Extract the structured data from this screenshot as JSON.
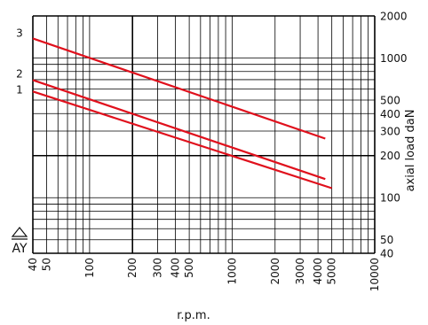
{
  "chart_data": {
    "type": "line",
    "x_scale": "log",
    "y_scale": "log",
    "xlim": [
      40,
      10000
    ],
    "ylim": [
      40,
      2000
    ],
    "grid": true,
    "xlabel": "r.p.m.",
    "ylabel": "axial load  daN",
    "x_ticks": [
      {
        "value": 40,
        "label": "40"
      },
      {
        "value": 50,
        "label": "50"
      },
      {
        "value": 100,
        "label": "100"
      },
      {
        "value": 200,
        "label": "200"
      },
      {
        "value": 300,
        "label": "300"
      },
      {
        "value": 400,
        "label": "400"
      },
      {
        "value": 500,
        "label": "500"
      },
      {
        "value": 1000,
        "label": "1000"
      },
      {
        "value": 2000,
        "label": "2000"
      },
      {
        "value": 3000,
        "label": "3000"
      },
      {
        "value": 4000,
        "label": "4000"
      },
      {
        "value": 5000,
        "label": "5000"
      },
      {
        "value": 10000,
        "label": "10000"
      }
    ],
    "y_ticks": [
      {
        "value": 40,
        "label": "40"
      },
      {
        "value": 50,
        "label": "50"
      },
      {
        "value": 100,
        "label": "100"
      },
      {
        "value": 200,
        "label": "200"
      },
      {
        "value": 300,
        "label": "300"
      },
      {
        "value": 400,
        "label": "400"
      },
      {
        "value": 500,
        "label": "500"
      },
      {
        "value": 1000,
        "label": "1000"
      },
      {
        "value": 2000,
        "label": "2000"
      }
    ],
    "series": [
      {
        "name": "1",
        "color": "#e0101c",
        "x": [
          40,
          5000
        ],
        "y": [
          576,
          117
        ]
      },
      {
        "name": "2",
        "color": "#e0101c",
        "x": [
          40,
          4500
        ],
        "y": [
          695,
          136
        ]
      },
      {
        "name": "3",
        "color": "#e0101c",
        "x": [
          40,
          4500
        ],
        "y": [
          1380,
          265
        ]
      }
    ],
    "corner_label": "AY",
    "corner_symbol": "triangle"
  }
}
